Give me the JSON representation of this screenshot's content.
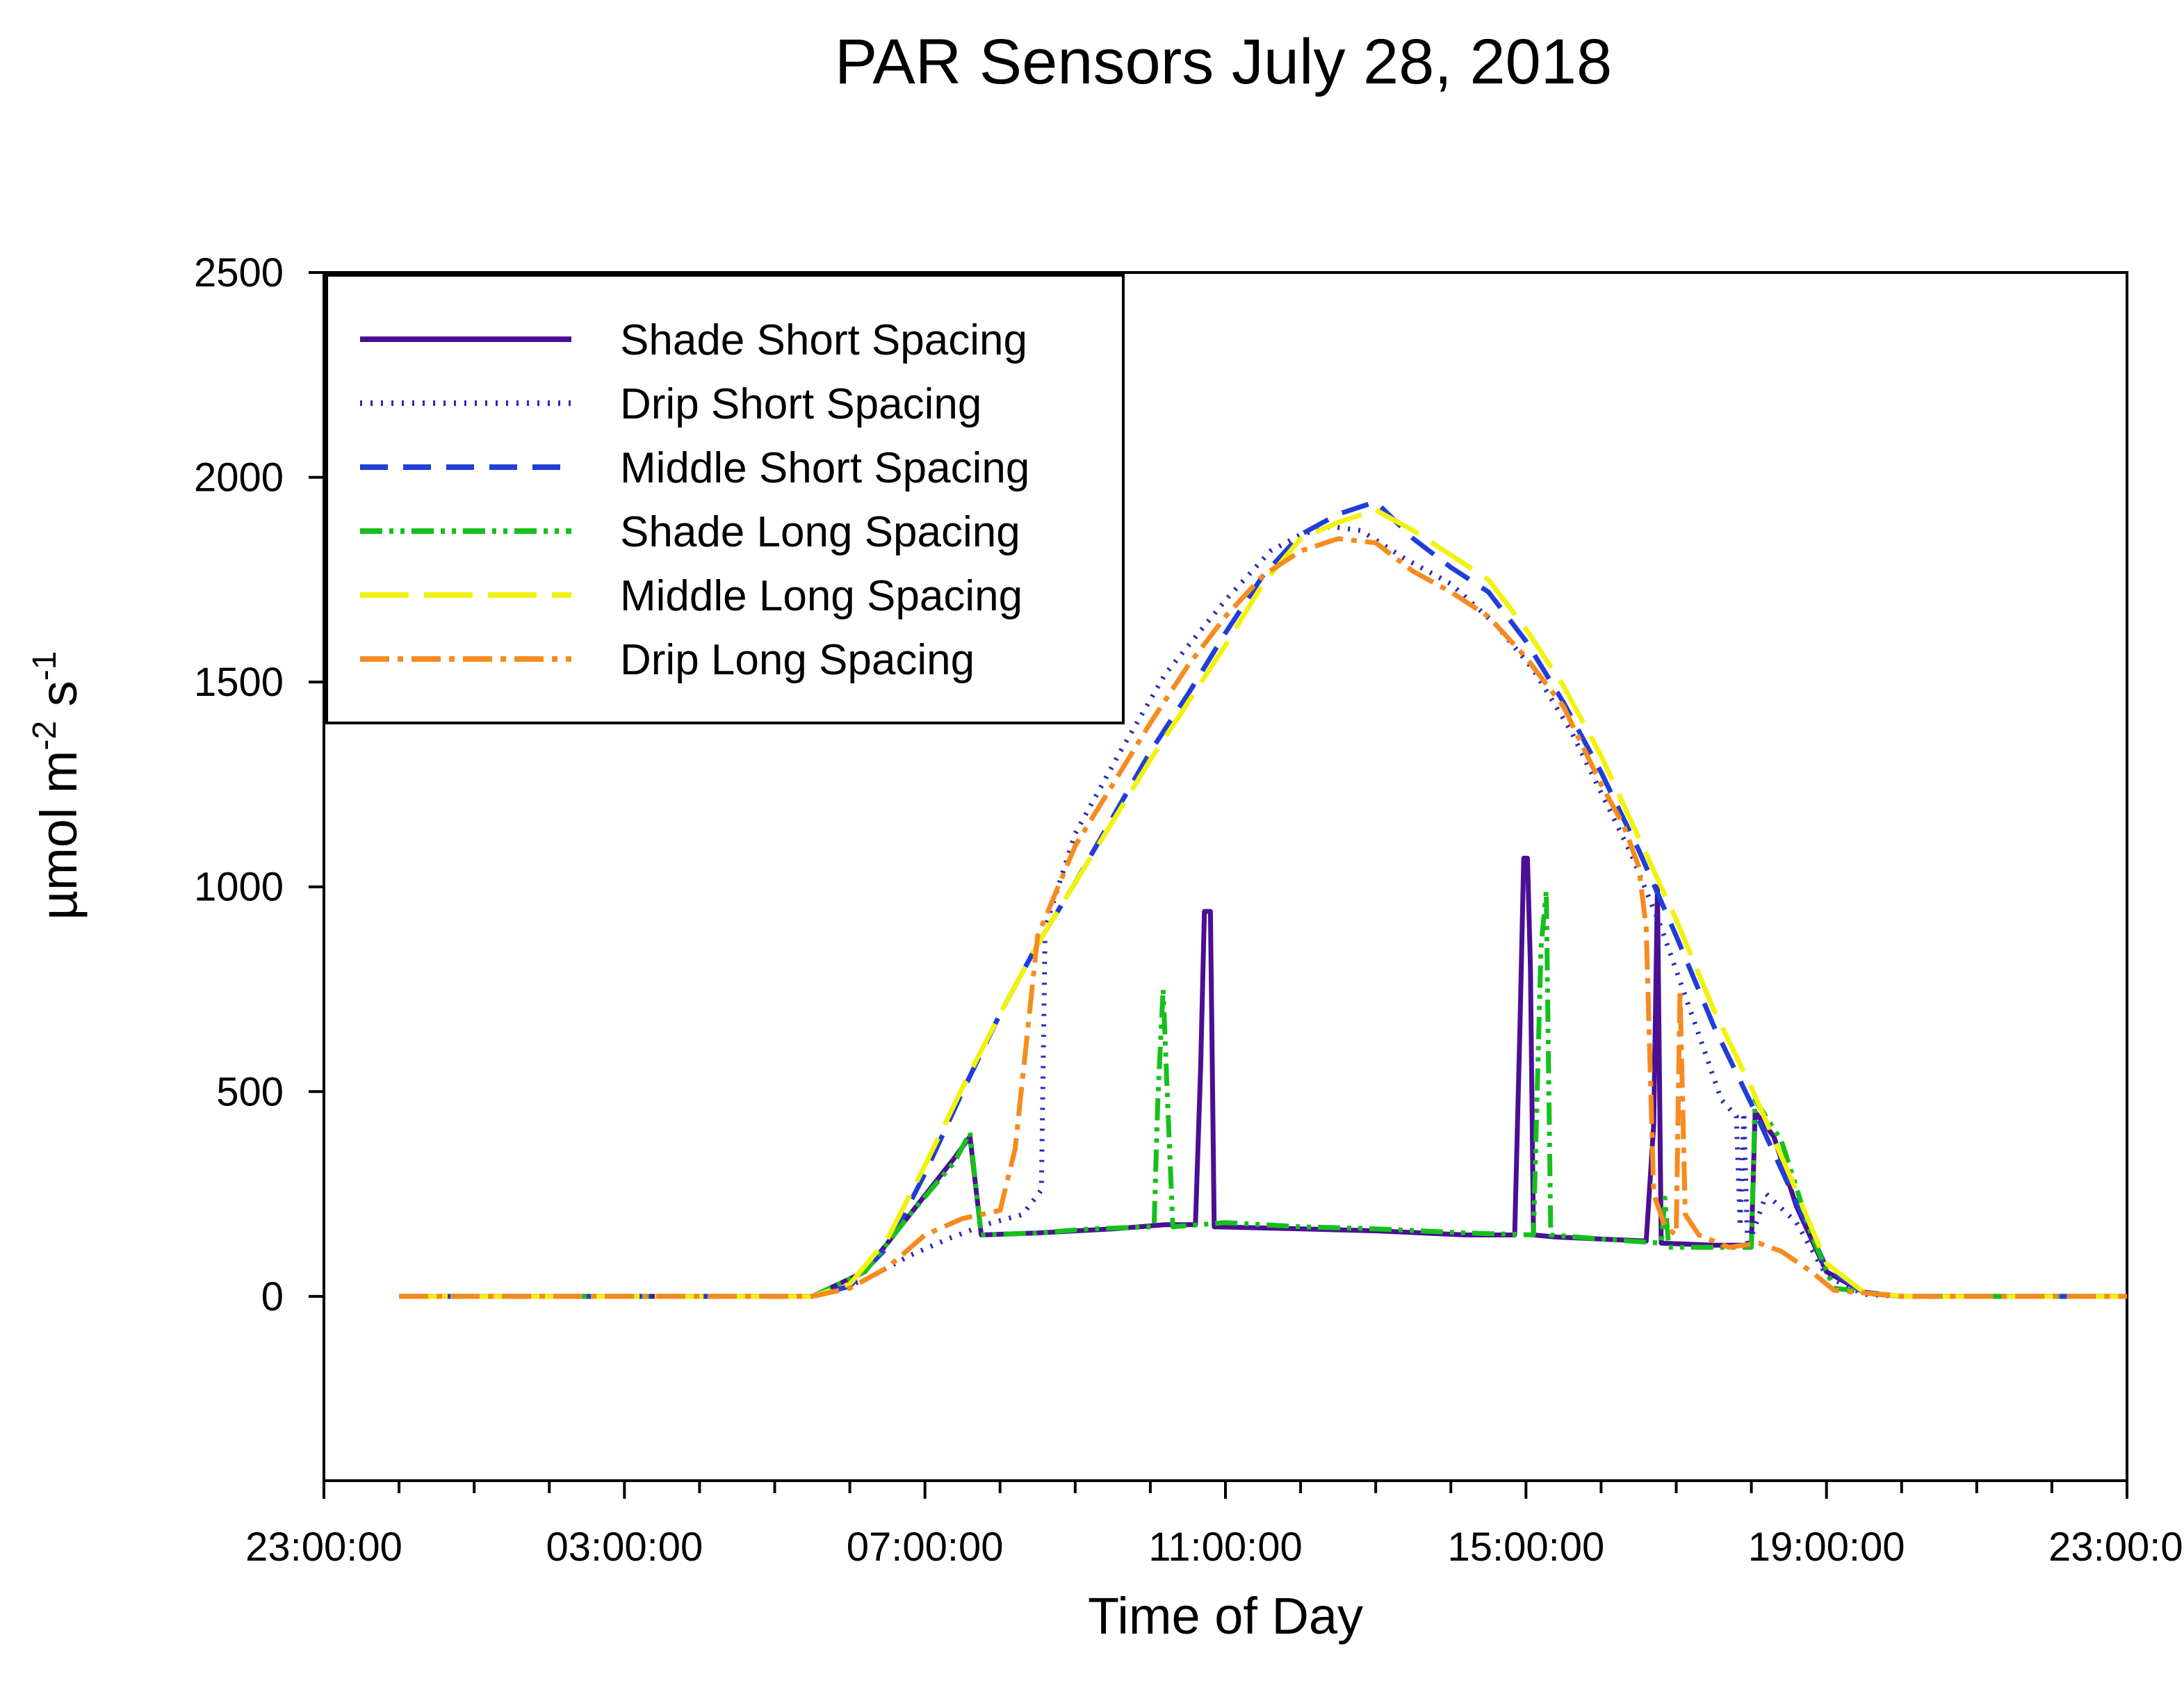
{
  "chart_data": {
    "type": "line",
    "title": "PAR Sensors July 28, 2018",
    "xlabel": "Time of Day",
    "ylabel": {
      "base": "µmol m",
      "exp1": "-2",
      "mid": " s",
      "exp2": "-1"
    },
    "ylim": [
      -450,
      2500
    ],
    "xlim": [
      0,
      24
    ],
    "yticks": [
      0,
      500,
      1000,
      1500,
      2000,
      2500
    ],
    "xticks": [
      {
        "value": 0,
        "label": "23:00:00"
      },
      {
        "value": 4,
        "label": "03:00:00"
      },
      {
        "value": 8,
        "label": "07:00:00"
      },
      {
        "value": 12,
        "label": "11:00:00"
      },
      {
        "value": 16,
        "label": "15:00:00"
      },
      {
        "value": 20,
        "label": "19:00:00"
      },
      {
        "value": 24,
        "label": "23:00:00"
      }
    ],
    "x_unit": "hours since 23:00:00",
    "legend_position": "top-left",
    "series": [
      {
        "name": "Shade Short Spacing",
        "color": "#4b0f94",
        "dash": "solid",
        "points": [
          [
            1,
            0
          ],
          [
            6.5,
            0
          ],
          [
            7.2,
            60
          ],
          [
            7.8,
            200
          ],
          [
            8.4,
            340
          ],
          [
            8.6,
            390
          ],
          [
            8.75,
            150
          ],
          [
            9.5,
            155
          ],
          [
            10.5,
            165
          ],
          [
            11.2,
            175
          ],
          [
            11.6,
            175
          ],
          [
            11.67,
            560
          ],
          [
            11.72,
            940
          ],
          [
            11.8,
            940
          ],
          [
            11.85,
            170
          ],
          [
            13,
            165
          ],
          [
            14,
            160
          ],
          [
            15.2,
            150
          ],
          [
            15.85,
            150
          ],
          [
            15.92,
            660
          ],
          [
            15.97,
            1070
          ],
          [
            16.02,
            1070
          ],
          [
            16.06,
            800
          ],
          [
            16.1,
            150
          ],
          [
            16.4,
            145
          ],
          [
            17,
            140
          ],
          [
            17.6,
            135
          ],
          [
            17.7,
            420
          ],
          [
            17.75,
            1000
          ],
          [
            17.8,
            130
          ],
          [
            18.5,
            125
          ],
          [
            19.0,
            125
          ],
          [
            19.05,
            450
          ],
          [
            19.3,
            390
          ],
          [
            19.6,
            220
          ],
          [
            20,
            60
          ],
          [
            20.5,
            10
          ],
          [
            21,
            0
          ],
          [
            24,
            0
          ]
        ]
      },
      {
        "name": "Drip Short Spacing",
        "color": "#2a2ab8",
        "dash": "3 12",
        "points": [
          [
            1,
            0
          ],
          [
            6.5,
            0
          ],
          [
            7.2,
            40
          ],
          [
            7.8,
            100
          ],
          [
            8.3,
            140
          ],
          [
            8.8,
            175
          ],
          [
            9.3,
            200
          ],
          [
            9.55,
            260
          ],
          [
            9.6,
            900
          ],
          [
            10,
            1130
          ],
          [
            10.6,
            1330
          ],
          [
            11.2,
            1520
          ],
          [
            12,
            1700
          ],
          [
            12.6,
            1820
          ],
          [
            13,
            1860
          ],
          [
            13.4,
            1880
          ],
          [
            13.8,
            1870
          ],
          [
            14.4,
            1800
          ],
          [
            15,
            1740
          ],
          [
            15.6,
            1640
          ],
          [
            16.1,
            1530
          ],
          [
            16.6,
            1380
          ],
          [
            17,
            1230
          ],
          [
            17.4,
            1080
          ],
          [
            17.8,
            900
          ],
          [
            18.3,
            640
          ],
          [
            18.6,
            480
          ],
          [
            18.8,
            440
          ],
          [
            18.85,
            170
          ],
          [
            18.9,
            450
          ],
          [
            18.95,
            120
          ],
          [
            19.2,
            250
          ],
          [
            19.6,
            180
          ],
          [
            20,
            50
          ],
          [
            20.5,
            5
          ],
          [
            21,
            0
          ],
          [
            24,
            0
          ]
        ]
      },
      {
        "name": "Middle Short Spacing",
        "color": "#1f3fd6",
        "dash": "40 22",
        "points": [
          [
            1,
            0
          ],
          [
            6.5,
            0
          ],
          [
            7,
            25
          ],
          [
            7.5,
            120
          ],
          [
            8,
            300
          ],
          [
            8.5,
            500
          ],
          [
            9,
            690
          ],
          [
            9.5,
            860
          ],
          [
            10,
            1010
          ],
          [
            10.5,
            1170
          ],
          [
            11,
            1330
          ],
          [
            11.5,
            1470
          ],
          [
            12,
            1620
          ],
          [
            12.5,
            1760
          ],
          [
            13,
            1860
          ],
          [
            13.5,
            1910
          ],
          [
            14,
            1940
          ],
          [
            14.5,
            1850
          ],
          [
            15,
            1780
          ],
          [
            15.5,
            1720
          ],
          [
            16,
            1600
          ],
          [
            16.5,
            1450
          ],
          [
            17,
            1280
          ],
          [
            17.5,
            1090
          ],
          [
            18,
            880
          ],
          [
            18.5,
            660
          ],
          [
            19,
            470
          ],
          [
            19.5,
            270
          ],
          [
            20,
            70
          ],
          [
            20.5,
            8
          ],
          [
            21,
            0
          ],
          [
            24,
            0
          ]
        ]
      },
      {
        "name": "Shade Long Spacing",
        "color": "#16c01c",
        "dash": "32 10 6 10 6 10",
        "points": [
          [
            1,
            0
          ],
          [
            6.5,
            0
          ],
          [
            7.2,
            60
          ],
          [
            7.8,
            200
          ],
          [
            8.4,
            330
          ],
          [
            8.6,
            400
          ],
          [
            8.75,
            150
          ],
          [
            9.5,
            155
          ],
          [
            10.2,
            165
          ],
          [
            11.05,
            170
          ],
          [
            11.1,
            480
          ],
          [
            11.17,
            750
          ],
          [
            11.22,
            520
          ],
          [
            11.3,
            170
          ],
          [
            12,
            180
          ],
          [
            13,
            170
          ],
          [
            14,
            165
          ],
          [
            15.2,
            155
          ],
          [
            16.1,
            150
          ],
          [
            16.2,
            850
          ],
          [
            16.27,
            990
          ],
          [
            16.33,
            150
          ],
          [
            17,
            140
          ],
          [
            17.8,
            130
          ],
          [
            17.85,
            240
          ],
          [
            17.9,
            120
          ],
          [
            19.0,
            120
          ],
          [
            19.05,
            480
          ],
          [
            19.4,
            380
          ],
          [
            19.8,
            150
          ],
          [
            20.1,
            20
          ],
          [
            21,
            0
          ],
          [
            24,
            0
          ]
        ]
      },
      {
        "name": "Middle Long Spacing",
        "color": "#f2f20f",
        "dash": "70 22",
        "points": [
          [
            1,
            0
          ],
          [
            6.5,
            0
          ],
          [
            7,
            30
          ],
          [
            7.5,
            140
          ],
          [
            8,
            320
          ],
          [
            8.5,
            510
          ],
          [
            9,
            690
          ],
          [
            9.5,
            860
          ],
          [
            10,
            1010
          ],
          [
            10.5,
            1160
          ],
          [
            11,
            1310
          ],
          [
            11.5,
            1450
          ],
          [
            12,
            1590
          ],
          [
            12.5,
            1740
          ],
          [
            13,
            1850
          ],
          [
            13.5,
            1890
          ],
          [
            14,
            1920
          ],
          [
            14.5,
            1870
          ],
          [
            15,
            1810
          ],
          [
            15.5,
            1750
          ],
          [
            16,
            1630
          ],
          [
            16.5,
            1490
          ],
          [
            17,
            1320
          ],
          [
            17.5,
            1120
          ],
          [
            18,
            920
          ],
          [
            18.5,
            700
          ],
          [
            19,
            510
          ],
          [
            19.5,
            300
          ],
          [
            20,
            80
          ],
          [
            20.5,
            10
          ],
          [
            21,
            0
          ],
          [
            24,
            0
          ]
        ]
      },
      {
        "name": "Drip Long Spacing",
        "color": "#f68b1f",
        "dash": "42 12 8 12",
        "points": [
          [
            1,
            0
          ],
          [
            6.5,
            0
          ],
          [
            7,
            20
          ],
          [
            7.5,
            70
          ],
          [
            8,
            150
          ],
          [
            8.5,
            190
          ],
          [
            9,
            210
          ],
          [
            9.2,
            360
          ],
          [
            9.5,
            880
          ],
          [
            10,
            1100
          ],
          [
            10.5,
            1250
          ],
          [
            11,
            1400
          ],
          [
            11.5,
            1540
          ],
          [
            12,
            1660
          ],
          [
            12.5,
            1760
          ],
          [
            13,
            1820
          ],
          [
            13.5,
            1850
          ],
          [
            14,
            1840
          ],
          [
            14.5,
            1770
          ],
          [
            15,
            1720
          ],
          [
            15.5,
            1660
          ],
          [
            16,
            1560
          ],
          [
            16.5,
            1440
          ],
          [
            17,
            1250
          ],
          [
            17.3,
            1150
          ],
          [
            17.5,
            1050
          ],
          [
            17.6,
            900
          ],
          [
            17.7,
            250
          ],
          [
            17.85,
            170
          ],
          [
            18.0,
            150
          ],
          [
            18.05,
            750
          ],
          [
            18.12,
            200
          ],
          [
            18.3,
            150
          ],
          [
            18.7,
            120
          ],
          [
            19.1,
            130
          ],
          [
            19.4,
            110
          ],
          [
            19.8,
            60
          ],
          [
            20.1,
            15
          ],
          [
            21,
            0
          ],
          [
            24,
            0
          ]
        ]
      }
    ]
  }
}
